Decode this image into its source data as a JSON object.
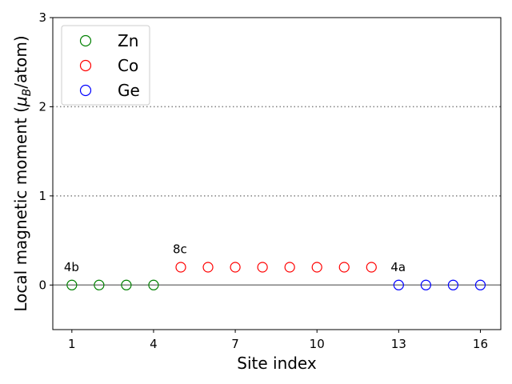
{
  "chart_data": {
    "type": "scatter",
    "xlabel": "Site index",
    "ylabel_main": "Local magnetic moment (",
    "ylabel_mu": "μ",
    "ylabel_sub": "B",
    "ylabel_tail": "/atom)",
    "xlim": [
      0.3,
      16.75
    ],
    "ylim": [
      -0.5,
      3
    ],
    "xticks": [
      1,
      4,
      7,
      10,
      13,
      16
    ],
    "yticks": [
      0,
      1,
      2,
      3
    ],
    "hlines": [
      {
        "y": 0,
        "style": "solid",
        "color": "#808080"
      },
      {
        "y": 1,
        "style": "dotted",
        "color": "#808080"
      },
      {
        "y": 2,
        "style": "dotted",
        "color": "#808080"
      }
    ],
    "legend_position": "top-left",
    "series": [
      {
        "name": "Zn",
        "color": "#008000",
        "x": [
          1,
          2,
          3,
          4
        ],
        "y": [
          0,
          0,
          0,
          0
        ]
      },
      {
        "name": "Co",
        "color": "#ff0000",
        "x": [
          5,
          6,
          7,
          8,
          9,
          10,
          11,
          12
        ],
        "y": [
          0.2,
          0.2,
          0.2,
          0.2,
          0.2,
          0.2,
          0.2,
          0.2
        ]
      },
      {
        "name": "Ge",
        "color": "#0000ff",
        "x": [
          13,
          14,
          15,
          16
        ],
        "y": [
          0,
          0,
          0,
          0
        ]
      }
    ],
    "annotations": [
      {
        "text": "4b",
        "x": 1,
        "y": 0.2
      },
      {
        "text": "8c",
        "x": 5,
        "y": 0.4
      },
      {
        "text": "4a",
        "x": 13,
        "y": 0.2
      }
    ]
  }
}
